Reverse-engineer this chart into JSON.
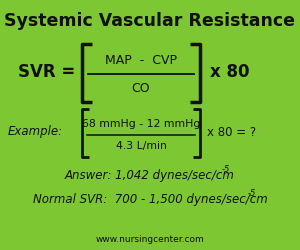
{
  "title": "Systemic Vascular Resistance",
  "bg_color": "#7DC832",
  "text_color": "#111111",
  "formula_numerator": "MAP  -  CVP",
  "formula_denominator": "CO",
  "example_numerator": "68 mmHg - 12 mmHg",
  "example_denominator": "4.3 L/min",
  "answer_main": "Answer: 1,042 dynes/sec/cm",
  "answer_sup": "-5",
  "normal_main": "Normal SVR:  700 - 1,500 dynes/sec/cm",
  "normal_sup": "-5",
  "website": "www.nursingcenter.com"
}
